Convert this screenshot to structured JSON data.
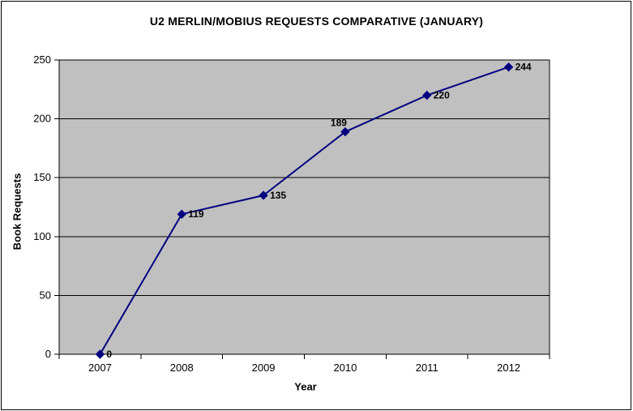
{
  "chart_data": {
    "type": "line",
    "title": "U2 MERLIN/MOBIUS REQUESTS COMPARATIVE (JANUARY)",
    "xlabel": "Year",
    "ylabel": "Book Requests",
    "categories": [
      "2007",
      "2008",
      "2009",
      "2010",
      "2011",
      "2012"
    ],
    "series": [
      {
        "name": "Book Requests",
        "values": [
          0,
          119,
          135,
          189,
          220,
          244
        ]
      }
    ],
    "data_labels": [
      "0",
      "119",
      "135",
      "189",
      "220",
      "244"
    ],
    "label_placement": [
      "right",
      "right",
      "right",
      "above",
      "right",
      "right"
    ],
    "ylim": [
      0,
      250
    ],
    "y_tick_step": 50,
    "grid": true,
    "legend": "none",
    "colors": {
      "line": "#000080",
      "marker": "#000080",
      "plot_background": "#C0C0C0",
      "chart_background": "#FFFFFF",
      "gridline": "#000000",
      "axis": "#000000",
      "text": "#000000"
    }
  }
}
